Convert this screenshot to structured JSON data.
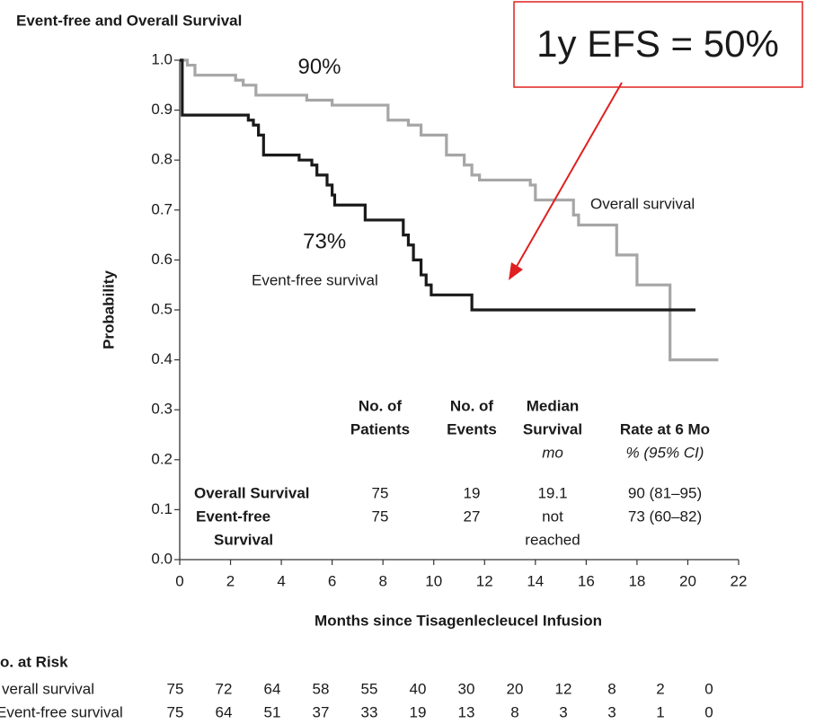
{
  "chart_data": {
    "type": "line",
    "title": "Event-free and Overall Survival",
    "xlabel": "Months since Tisagenlecleucel Infusion",
    "ylabel": "Probability",
    "xlim": [
      0,
      22
    ],
    "ylim": [
      0,
      1
    ],
    "xticks": [
      0,
      2,
      4,
      6,
      8,
      10,
      12,
      14,
      16,
      18,
      20,
      22
    ],
    "yticks": [
      {
        "value": 0,
        "label": "0.0"
      },
      0.1,
      0.2,
      0.3,
      0.4,
      0.5,
      0.6,
      0.7,
      0.8,
      0.9,
      {
        "value": 1,
        "label": "1.0"
      }
    ],
    "step": true,
    "series": [
      {
        "name": "Overall survival",
        "color": "#a6a6a6",
        "x": [
          0,
          0.3,
          0.6,
          2.2,
          2.5,
          3.0,
          5.0,
          6.0,
          8.2,
          9.0,
          9.5,
          10.5,
          11.2,
          11.5,
          11.8,
          13.8,
          14.0,
          15.5,
          15.7,
          17.2,
          18.0,
          19.3,
          21.2
        ],
        "values": [
          1.0,
          0.99,
          0.97,
          0.96,
          0.95,
          0.93,
          0.92,
          0.91,
          0.88,
          0.87,
          0.85,
          0.81,
          0.79,
          0.77,
          0.76,
          0.75,
          0.72,
          0.69,
          0.67,
          0.61,
          0.55,
          0.4,
          0.4
        ]
      },
      {
        "name": "Event-free survival",
        "color": "#1a1a1a",
        "x": [
          0,
          0.1,
          2.7,
          2.9,
          3.1,
          3.3,
          4.7,
          5.2,
          5.4,
          5.8,
          6.0,
          6.1,
          7.3,
          8.8,
          9.0,
          9.2,
          9.5,
          9.7,
          9.9,
          11.5,
          20.3
        ],
        "values": [
          1.0,
          0.89,
          0.88,
          0.87,
          0.85,
          0.81,
          0.8,
          0.79,
          0.77,
          0.75,
          0.73,
          0.71,
          0.68,
          0.65,
          0.63,
          0.6,
          0.57,
          0.55,
          0.53,
          0.5,
          0.5
        ]
      }
    ],
    "annotations": [
      {
        "text": "90%",
        "x": 5.5,
        "y": 0.99
      },
      {
        "text": "73%",
        "x": 5.7,
        "y": 0.64
      }
    ],
    "callout": "1y EFS = 50%",
    "summary_table": {
      "headers": [
        [
          "No. of",
          "Patients"
        ],
        [
          "No. of",
          "Events"
        ],
        [
          "Median",
          "Survival",
          "mo"
        ],
        [
          "Rate at 6 Mo",
          "% (95% CI)"
        ]
      ],
      "rows": [
        {
          "label": [
            "Overall Survival"
          ],
          "cells": [
            [
              "75"
            ],
            [
              "19"
            ],
            [
              "19.1"
            ],
            [
              "90 (81–95)"
            ]
          ]
        },
        {
          "label": [
            "Event-free",
            "Survival"
          ],
          "cells": [
            [
              "75"
            ],
            [
              "27"
            ],
            [
              "not",
              "reached"
            ],
            [
              "73 (60–82)"
            ]
          ]
        }
      ]
    },
    "at_risk": {
      "title": "o. at Risk",
      "rows": [
        {
          "label": "verall survival",
          "values": [
            75,
            72,
            64,
            58,
            55,
            40,
            30,
            20,
            12,
            8,
            2,
            0
          ]
        },
        {
          "label": "Event-free survival",
          "values": [
            75,
            64,
            51,
            37,
            33,
            19,
            13,
            8,
            3,
            3,
            1,
            0
          ]
        }
      ]
    }
  }
}
